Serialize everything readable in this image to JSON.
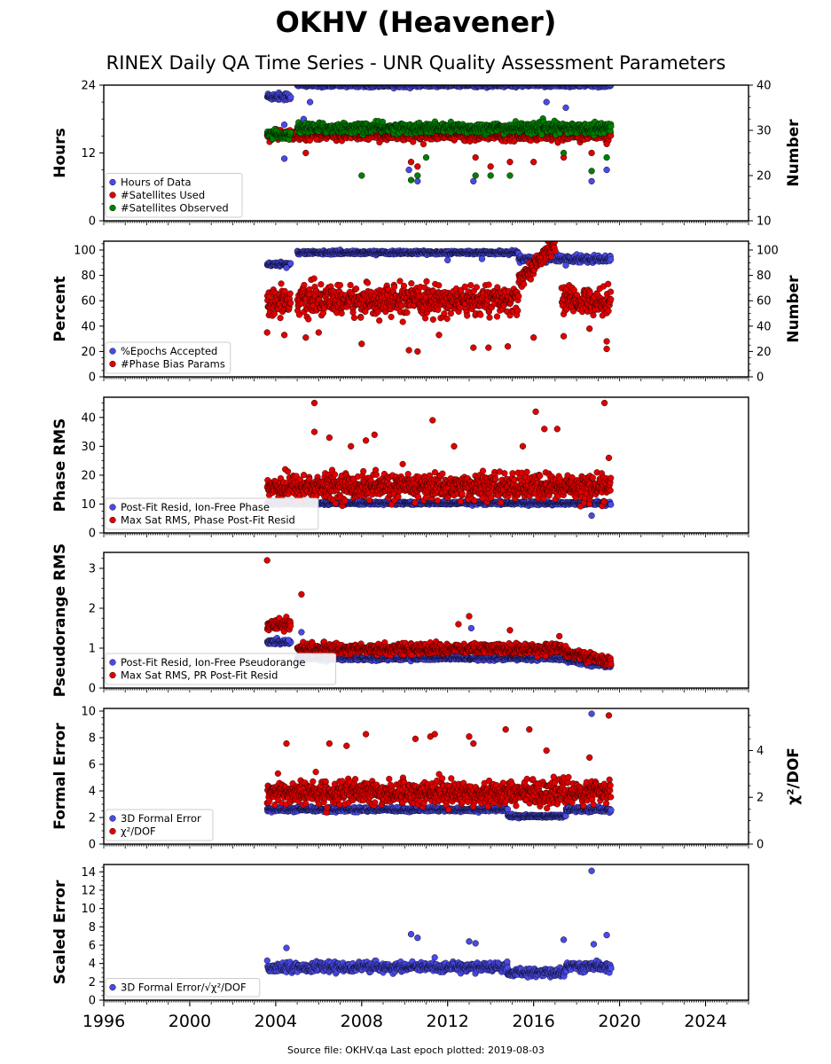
{
  "title": "OKHV (Heavener)",
  "subtitle": "RINEX Daily QA Time Series - UNR Quality Assessment Parameters",
  "footer": "Source file: OKHV.qa Last epoch plotted: 2019-08-03",
  "colors": {
    "blue": "#4a4ae8",
    "red": "#e00000",
    "green": "#008000"
  },
  "chart_data": [
    {
      "type": "scatter",
      "ylabel": "Hours",
      "ylabel_right": "Number",
      "xlim": [
        1996,
        2026
      ],
      "ylim": [
        0,
        24
      ],
      "ylim_right": [
        10,
        40
      ],
      "yticks": [
        0,
        12,
        24
      ],
      "yticks_right": [
        10,
        20,
        30,
        40
      ],
      "legend": "lower-left",
      "series": [
        {
          "name": "Hours of Data",
          "color": "blue",
          "axis": "left",
          "segments": [
            {
              "x": [
                2003.6,
                2004.7
              ],
              "y": 22,
              "spread": 0.6
            },
            {
              "x": [
                2005.0,
                2019.6
              ],
              "y": 24,
              "spread": 0.3
            }
          ],
          "outliers": [
            [
              2004.4,
              17
            ],
            [
              2004.4,
              11
            ],
            [
              2005.3,
              18
            ],
            [
              2005.6,
              21
            ],
            [
              2010.2,
              9
            ],
            [
              2010.6,
              7
            ],
            [
              2013.2,
              7
            ],
            [
              2016.6,
              21
            ],
            [
              2017.5,
              20
            ],
            [
              2018.7,
              7
            ],
            [
              2019.4,
              9
            ]
          ]
        },
        {
          "name": "#Satellites Used",
          "color": "red",
          "axis": "right",
          "segments": [
            {
              "x": [
                2003.6,
                2019.6
              ],
              "y": 29,
              "spread": 1.0
            }
          ],
          "outliers": [
            [
              2005.4,
              25
            ],
            [
              2005.9,
              28
            ],
            [
              2010.3,
              23
            ],
            [
              2010.6,
              22
            ],
            [
              2013.3,
              24
            ],
            [
              2014.0,
              22
            ],
            [
              2014.9,
              23
            ],
            [
              2016.0,
              23
            ],
            [
              2017.4,
              24
            ],
            [
              2018.7,
              25
            ],
            [
              2019.4,
              27
            ]
          ]
        },
        {
          "name": "#Satellites Observed",
          "color": "green",
          "axis": "right",
          "segments": [
            {
              "x": [
                2003.6,
                2004.7
              ],
              "y": 29,
              "spread": 0.8
            },
            {
              "x": [
                2005.0,
                2019.6
              ],
              "y": 30.5,
              "spread": 1.0
            }
          ],
          "outliers": [
            [
              2008.0,
              20
            ],
            [
              2010.3,
              19
            ],
            [
              2010.6,
              20
            ],
            [
              2011.0,
              24
            ],
            [
              2013.3,
              20
            ],
            [
              2014.0,
              20
            ],
            [
              2014.9,
              20
            ],
            [
              2017.4,
              25
            ],
            [
              2018.7,
              21
            ],
            [
              2019.4,
              24
            ]
          ]
        }
      ]
    },
    {
      "type": "scatter",
      "ylabel": "Percent",
      "ylabel_right": "Number",
      "xlim": [
        1996,
        2026
      ],
      "ylim": [
        0,
        107
      ],
      "ylim_right": [
        0,
        107
      ],
      "yticks": [
        0,
        20,
        40,
        60,
        80,
        100
      ],
      "yticks_right": [
        0,
        20,
        40,
        60,
        80,
        100
      ],
      "legend": "lower-left",
      "series": [
        {
          "name": "%Epochs Accepted",
          "color": "blue",
          "axis": "left",
          "segments": [
            {
              "x": [
                2003.6,
                2004.7
              ],
              "y": 89,
              "spread": 1.5
            },
            {
              "x": [
                2005.0,
                2015.3
              ],
              "y": 98,
              "spread": 1.2
            },
            {
              "x": [
                2015.3,
                2019.6
              ],
              "y": 93,
              "spread": 2.5
            }
          ],
          "outliers": [
            [
              2004.5,
              86
            ],
            [
              2012.0,
              92
            ],
            [
              2013.6,
              93
            ],
            [
              2017.5,
              88
            ]
          ]
        },
        {
          "name": "#Phase Bias Params",
          "color": "red",
          "axis": "right",
          "segments": [
            {
              "x": [
                2003.6,
                2004.7
              ],
              "y": 60,
              "spread": 9
            },
            {
              "x": [
                2005.0,
                2015.3
              ],
              "y": 60,
              "spread": 10
            },
            {
              "x": [
                2015.3,
                2017.0
              ],
              "y": [
                75,
                105
              ],
              "spread": 6
            },
            {
              "x": [
                2017.3,
                2019.6
              ],
              "y": 60,
              "spread": 9
            }
          ],
          "outliers": [
            [
              2003.6,
              35
            ],
            [
              2004.4,
              33
            ],
            [
              2005.4,
              31
            ],
            [
              2006.0,
              35
            ],
            [
              2008.0,
              26
            ],
            [
              2010.2,
              21
            ],
            [
              2010.6,
              20
            ],
            [
              2011.6,
              33
            ],
            [
              2013.2,
              23
            ],
            [
              2013.9,
              23
            ],
            [
              2014.8,
              24
            ],
            [
              2016.0,
              31
            ],
            [
              2017.4,
              32
            ],
            [
              2018.6,
              38
            ],
            [
              2019.4,
              22
            ],
            [
              2019.4,
              28
            ]
          ]
        }
      ]
    },
    {
      "type": "scatter",
      "ylabel": "Phase RMS",
      "xlim": [
        1996,
        2026
      ],
      "ylim": [
        0,
        47
      ],
      "yticks": [
        0,
        10,
        20,
        30,
        40
      ],
      "legend": "lower-left",
      "series": [
        {
          "name": "Post-Fit Resid, Ion-Free Phase",
          "color": "blue",
          "segments": [
            {
              "x": [
                2003.6,
                2019.6
              ],
              "y": 10.3,
              "spread": 0.5
            }
          ],
          "outliers": [
            [
              2018.7,
              6
            ]
          ]
        },
        {
          "name": "Max Sat RMS, Phase Post-Fit Resid",
          "color": "red",
          "segments": [
            {
              "x": [
                2003.6,
                2019.6
              ],
              "y": 16,
              "spread": 4
            }
          ],
          "outliers": [
            [
              2005.8,
              45
            ],
            [
              2005.8,
              35
            ],
            [
              2006.5,
              33
            ],
            [
              2007.5,
              30
            ],
            [
              2008.2,
              32
            ],
            [
              2008.6,
              34
            ],
            [
              2011.3,
              39
            ],
            [
              2012.3,
              30
            ],
            [
              2015.5,
              30
            ],
            [
              2016.1,
              42
            ],
            [
              2016.5,
              36
            ],
            [
              2017.1,
              36
            ],
            [
              2019.3,
              45
            ],
            [
              2019.5,
              26
            ],
            [
              2018.6,
              10
            ]
          ]
        }
      ]
    },
    {
      "type": "scatter",
      "ylabel": "Pseudorange RMS",
      "xlim": [
        1996,
        2026
      ],
      "ylim": [
        0,
        3.4
      ],
      "yticks": [
        0,
        1,
        2,
        3
      ],
      "legend": "lower-left",
      "series": [
        {
          "name": "Post-Fit Resid, Ion-Free Pseudorange",
          "color": "blue",
          "segments": [
            {
              "x": [
                2003.6,
                2004.7
              ],
              "y": 1.15,
              "spread": 0.05
            },
            {
              "x": [
                2005.0,
                2017.5
              ],
              "y": 0.75,
              "spread": 0.05
            },
            {
              "x": [
                2017.5,
                2019.6
              ],
              "y": [
                0.7,
                0.55
              ],
              "spread": 0.05
            }
          ],
          "outliers": [
            [
              2005.2,
              1.4
            ],
            [
              2013.1,
              1.5
            ],
            [
              2004.6,
              1.2
            ]
          ]
        },
        {
          "name": "Max Sat RMS, PR Post-Fit Resid",
          "color": "red",
          "segments": [
            {
              "x": [
                2003.6,
                2004.7
              ],
              "y": 1.6,
              "spread": 0.12
            },
            {
              "x": [
                2005.0,
                2017.5
              ],
              "y": 0.98,
              "spread": 0.12
            },
            {
              "x": [
                2017.5,
                2019.6
              ],
              "y": [
                0.9,
                0.65
              ],
              "spread": 0.1
            }
          ],
          "outliers": [
            [
              2003.6,
              3.2
            ],
            [
              2005.2,
              2.35
            ],
            [
              2013.0,
              1.8
            ],
            [
              2012.5,
              1.6
            ],
            [
              2014.9,
              1.45
            ],
            [
              2017.2,
              1.3
            ]
          ]
        }
      ]
    },
    {
      "type": "scatter",
      "ylabel": "Formal Error",
      "ylabel_right": "χ²/DOF",
      "xlim": [
        1996,
        2026
      ],
      "ylim": [
        0,
        10.2
      ],
      "ylim_right": [
        0,
        5.8
      ],
      "yticks": [
        0,
        2,
        4,
        6,
        8,
        10
      ],
      "yticks_right": [
        0,
        2,
        4
      ],
      "legend": "lower-left",
      "series": [
        {
          "name": "3D Formal Error",
          "color": "blue",
          "axis": "left",
          "segments": [
            {
              "x": [
                2003.6,
                2014.8
              ],
              "y": 2.6,
              "spread": 0.15
            },
            {
              "x": [
                2014.8,
                2017.5
              ],
              "y": 2.1,
              "spread": 0.1
            },
            {
              "x": [
                2017.5,
                2019.6
              ],
              "y": 2.6,
              "spread": 0.15
            }
          ],
          "outliers": [
            [
              2018.7,
              9.8
            ]
          ]
        },
        {
          "name": "χ²/DOF",
          "color": "red",
          "axis": "right",
          "segments": [
            {
              "x": [
                2003.6,
                2019.6
              ],
              "y": 2.2,
              "spread": 0.45
            }
          ],
          "outliers": [
            [
              2004.5,
              4.3
            ],
            [
              2006.5,
              4.3
            ],
            [
              2007.3,
              4.2
            ],
            [
              2008.2,
              4.7
            ],
            [
              2010.5,
              4.5
            ],
            [
              2011.2,
              4.6
            ],
            [
              2011.4,
              4.7
            ],
            [
              2013.0,
              4.6
            ],
            [
              2013.2,
              4.3
            ],
            [
              2014.7,
              4.9
            ],
            [
              2015.8,
              4.9
            ],
            [
              2016.6,
              4.0
            ],
            [
              2018.6,
              3.7
            ],
            [
              2019.5,
              5.5
            ]
          ]
        }
      ]
    },
    {
      "type": "scatter",
      "ylabel": "Scaled Error",
      "xlim": [
        1996,
        2026
      ],
      "ylim": [
        0,
        14.8
      ],
      "yticks": [
        0,
        2,
        4,
        6,
        8,
        10,
        12,
        14
      ],
      "xticks": [
        1996,
        2000,
        2004,
        2008,
        2012,
        2016,
        2020,
        2024
      ],
      "legend": "lower-left",
      "series": [
        {
          "name": "3D Formal Error/√χ²/DOF",
          "color": "blue",
          "segments": [
            {
              "x": [
                2003.6,
                2014.8
              ],
              "y": 3.6,
              "spread": 0.45
            },
            {
              "x": [
                2014.8,
                2017.5
              ],
              "y": 3.0,
              "spread": 0.4
            },
            {
              "x": [
                2017.5,
                2019.6
              ],
              "y": 3.7,
              "spread": 0.5
            }
          ],
          "outliers": [
            [
              2004.5,
              5.7
            ],
            [
              2010.3,
              7.2
            ],
            [
              2010.6,
              6.8
            ],
            [
              2013.0,
              6.4
            ],
            [
              2013.3,
              6.2
            ],
            [
              2017.4,
              6.6
            ],
            [
              2018.7,
              14.1
            ],
            [
              2018.8,
              6.1
            ],
            [
              2019.4,
              7.1
            ]
          ]
        }
      ]
    }
  ]
}
